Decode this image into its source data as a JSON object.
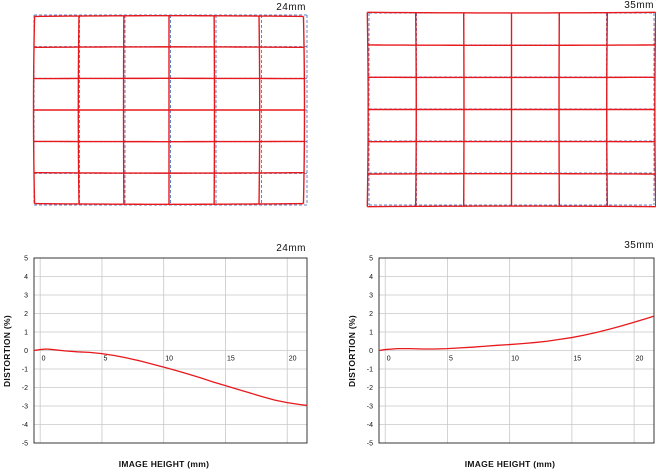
{
  "chart_data": [
    {
      "type": "grid",
      "focal_label": "24mm",
      "columns": 6,
      "rows": 6,
      "ideal_color": "#5b86c8",
      "actual_color": "#e8191c"
    },
    {
      "type": "grid",
      "focal_label": "35mm",
      "columns": 6,
      "rows": 6,
      "ideal_color": "#5b86c8",
      "actual_color": "#e8191c"
    },
    {
      "type": "line",
      "focal_label": "24mm",
      "xlabel": "IMAGE HEIGHT (mm)",
      "ylabel": "DISTORTION (%)",
      "xlim": [
        -0.5,
        21.6
      ],
      "ylim": [
        -5,
        5
      ],
      "xticks": [
        0,
        5,
        10,
        15,
        20
      ],
      "yticks": [
        5,
        4,
        3,
        2,
        1,
        0,
        -1,
        -2,
        -3,
        -4,
        -5
      ],
      "grid": true,
      "line_color": "#e8191c",
      "x": [
        -0.5,
        0,
        0.5,
        1,
        2,
        3,
        4,
        5,
        6,
        7,
        8,
        9,
        10,
        11,
        12,
        13,
        14,
        15,
        16,
        17,
        18,
        19,
        20,
        21,
        21.6
      ],
      "y": [
        0,
        0.05,
        0.08,
        0.05,
        -0.02,
        -0.07,
        -0.1,
        -0.17,
        -0.27,
        -0.4,
        -0.55,
        -0.72,
        -0.9,
        -1.08,
        -1.28,
        -1.48,
        -1.7,
        -1.9,
        -2.1,
        -2.3,
        -2.5,
        -2.68,
        -2.82,
        -2.92,
        -2.97
      ]
    },
    {
      "type": "line",
      "focal_label": "35mm",
      "xlabel": "IMAGE HEIGHT (mm)",
      "ylabel": "DISTORTION (%)",
      "xlim": [
        -0.5,
        21.6
      ],
      "ylim": [
        -5,
        5
      ],
      "xticks": [
        0,
        5,
        10,
        15,
        20
      ],
      "yticks": [
        5,
        4,
        3,
        2,
        1,
        0,
        -1,
        -2,
        -3,
        -4,
        -5
      ],
      "grid": true,
      "line_color": "#e8191c",
      "x": [
        -0.5,
        0,
        1,
        2,
        3,
        4,
        5,
        6,
        7,
        8,
        9,
        10,
        11,
        12,
        13,
        14,
        15,
        16,
        17,
        18,
        19,
        20,
        21,
        21.6
      ],
      "y": [
        0,
        0.05,
        0.1,
        0.1,
        0.08,
        0.08,
        0.1,
        0.14,
        0.18,
        0.23,
        0.28,
        0.32,
        0.37,
        0.43,
        0.5,
        0.6,
        0.7,
        0.83,
        0.98,
        1.15,
        1.33,
        1.53,
        1.73,
        1.86
      ]
    }
  ]
}
